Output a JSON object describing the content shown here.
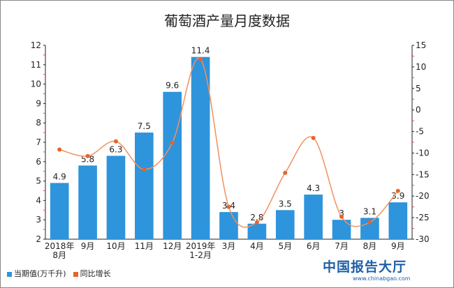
{
  "chart_data": {
    "type": "bar+line",
    "title": "葡萄酒产量月度数据",
    "categories": [
      "2018年\n8月",
      "9月",
      "10月",
      "11月",
      "12月",
      "2019年\n1-2月",
      "3月",
      "4月",
      "5月",
      "6月",
      "7月",
      "8月",
      "9月"
    ],
    "series": [
      {
        "name": "当期值(万千升)",
        "type": "bar",
        "axis": "left",
        "color": "#2e94dc",
        "values": [
          4.9,
          5.8,
          6.3,
          7.5,
          9.6,
          11.4,
          3.4,
          2.8,
          3.5,
          4.3,
          3,
          3.1,
          3.9
        ],
        "labels": [
          "4.9",
          "5.8",
          "6.3",
          "7.5",
          "9.6",
          "11.4",
          "3.4",
          "2.8",
          "3.5",
          "4.3",
          "3",
          "3.1",
          "3.9"
        ]
      },
      {
        "name": "同比增长",
        "type": "line",
        "axis": "right",
        "color": "#e8632b",
        "values": [
          -9.2,
          -10.7,
          -7.3,
          -13.8,
          -7.6,
          11.8,
          -22.5,
          -26.1,
          -14.6,
          -6.5,
          -24.8,
          -26.1,
          -18.8
        ]
      }
    ],
    "left_axis": {
      "ylim": [
        2,
        12
      ],
      "ticks": [
        "2",
        "3",
        "4",
        "5",
        "6",
        "7",
        "8",
        "9",
        "10",
        "11",
        "12"
      ]
    },
    "right_axis": {
      "ylim": [
        -30,
        15
      ],
      "ticks": [
        "-30",
        "-25",
        "-20",
        "-15",
        "-10",
        "-5",
        "0",
        "5",
        "10",
        "15"
      ]
    },
    "grid": false,
    "legend": "bottom-left"
  },
  "watermark": {
    "name": "中国报告大厅",
    "url": "www.chinabgao.com"
  }
}
